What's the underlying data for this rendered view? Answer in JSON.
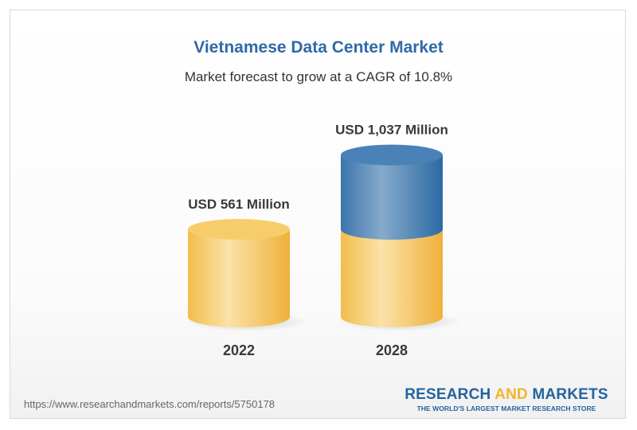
{
  "chart_data": {
    "type": "bar",
    "style": "3d-cylinder",
    "title": "Vietnamese Data Center Market",
    "subtitle": "Market forecast to grow at a CAGR of 10.8%",
    "categories": [
      "2022",
      "2028"
    ],
    "values": [
      561,
      1037
    ],
    "unit": "USD Million",
    "data_labels": [
      "USD 561 Million",
      "USD 1,037 Million"
    ],
    "grid": false,
    "colors": {
      "base": "#f5c456",
      "growth": "#3f7ab2"
    }
  },
  "footer": {
    "url": "https://www.researchandmarkets.com/reports/5750178",
    "logo_part1": "RESEARCH ",
    "logo_part2": "AND",
    "logo_part3": " MARKETS",
    "tagline": "THE WORLD'S LARGEST MARKET RESEARCH STORE"
  }
}
